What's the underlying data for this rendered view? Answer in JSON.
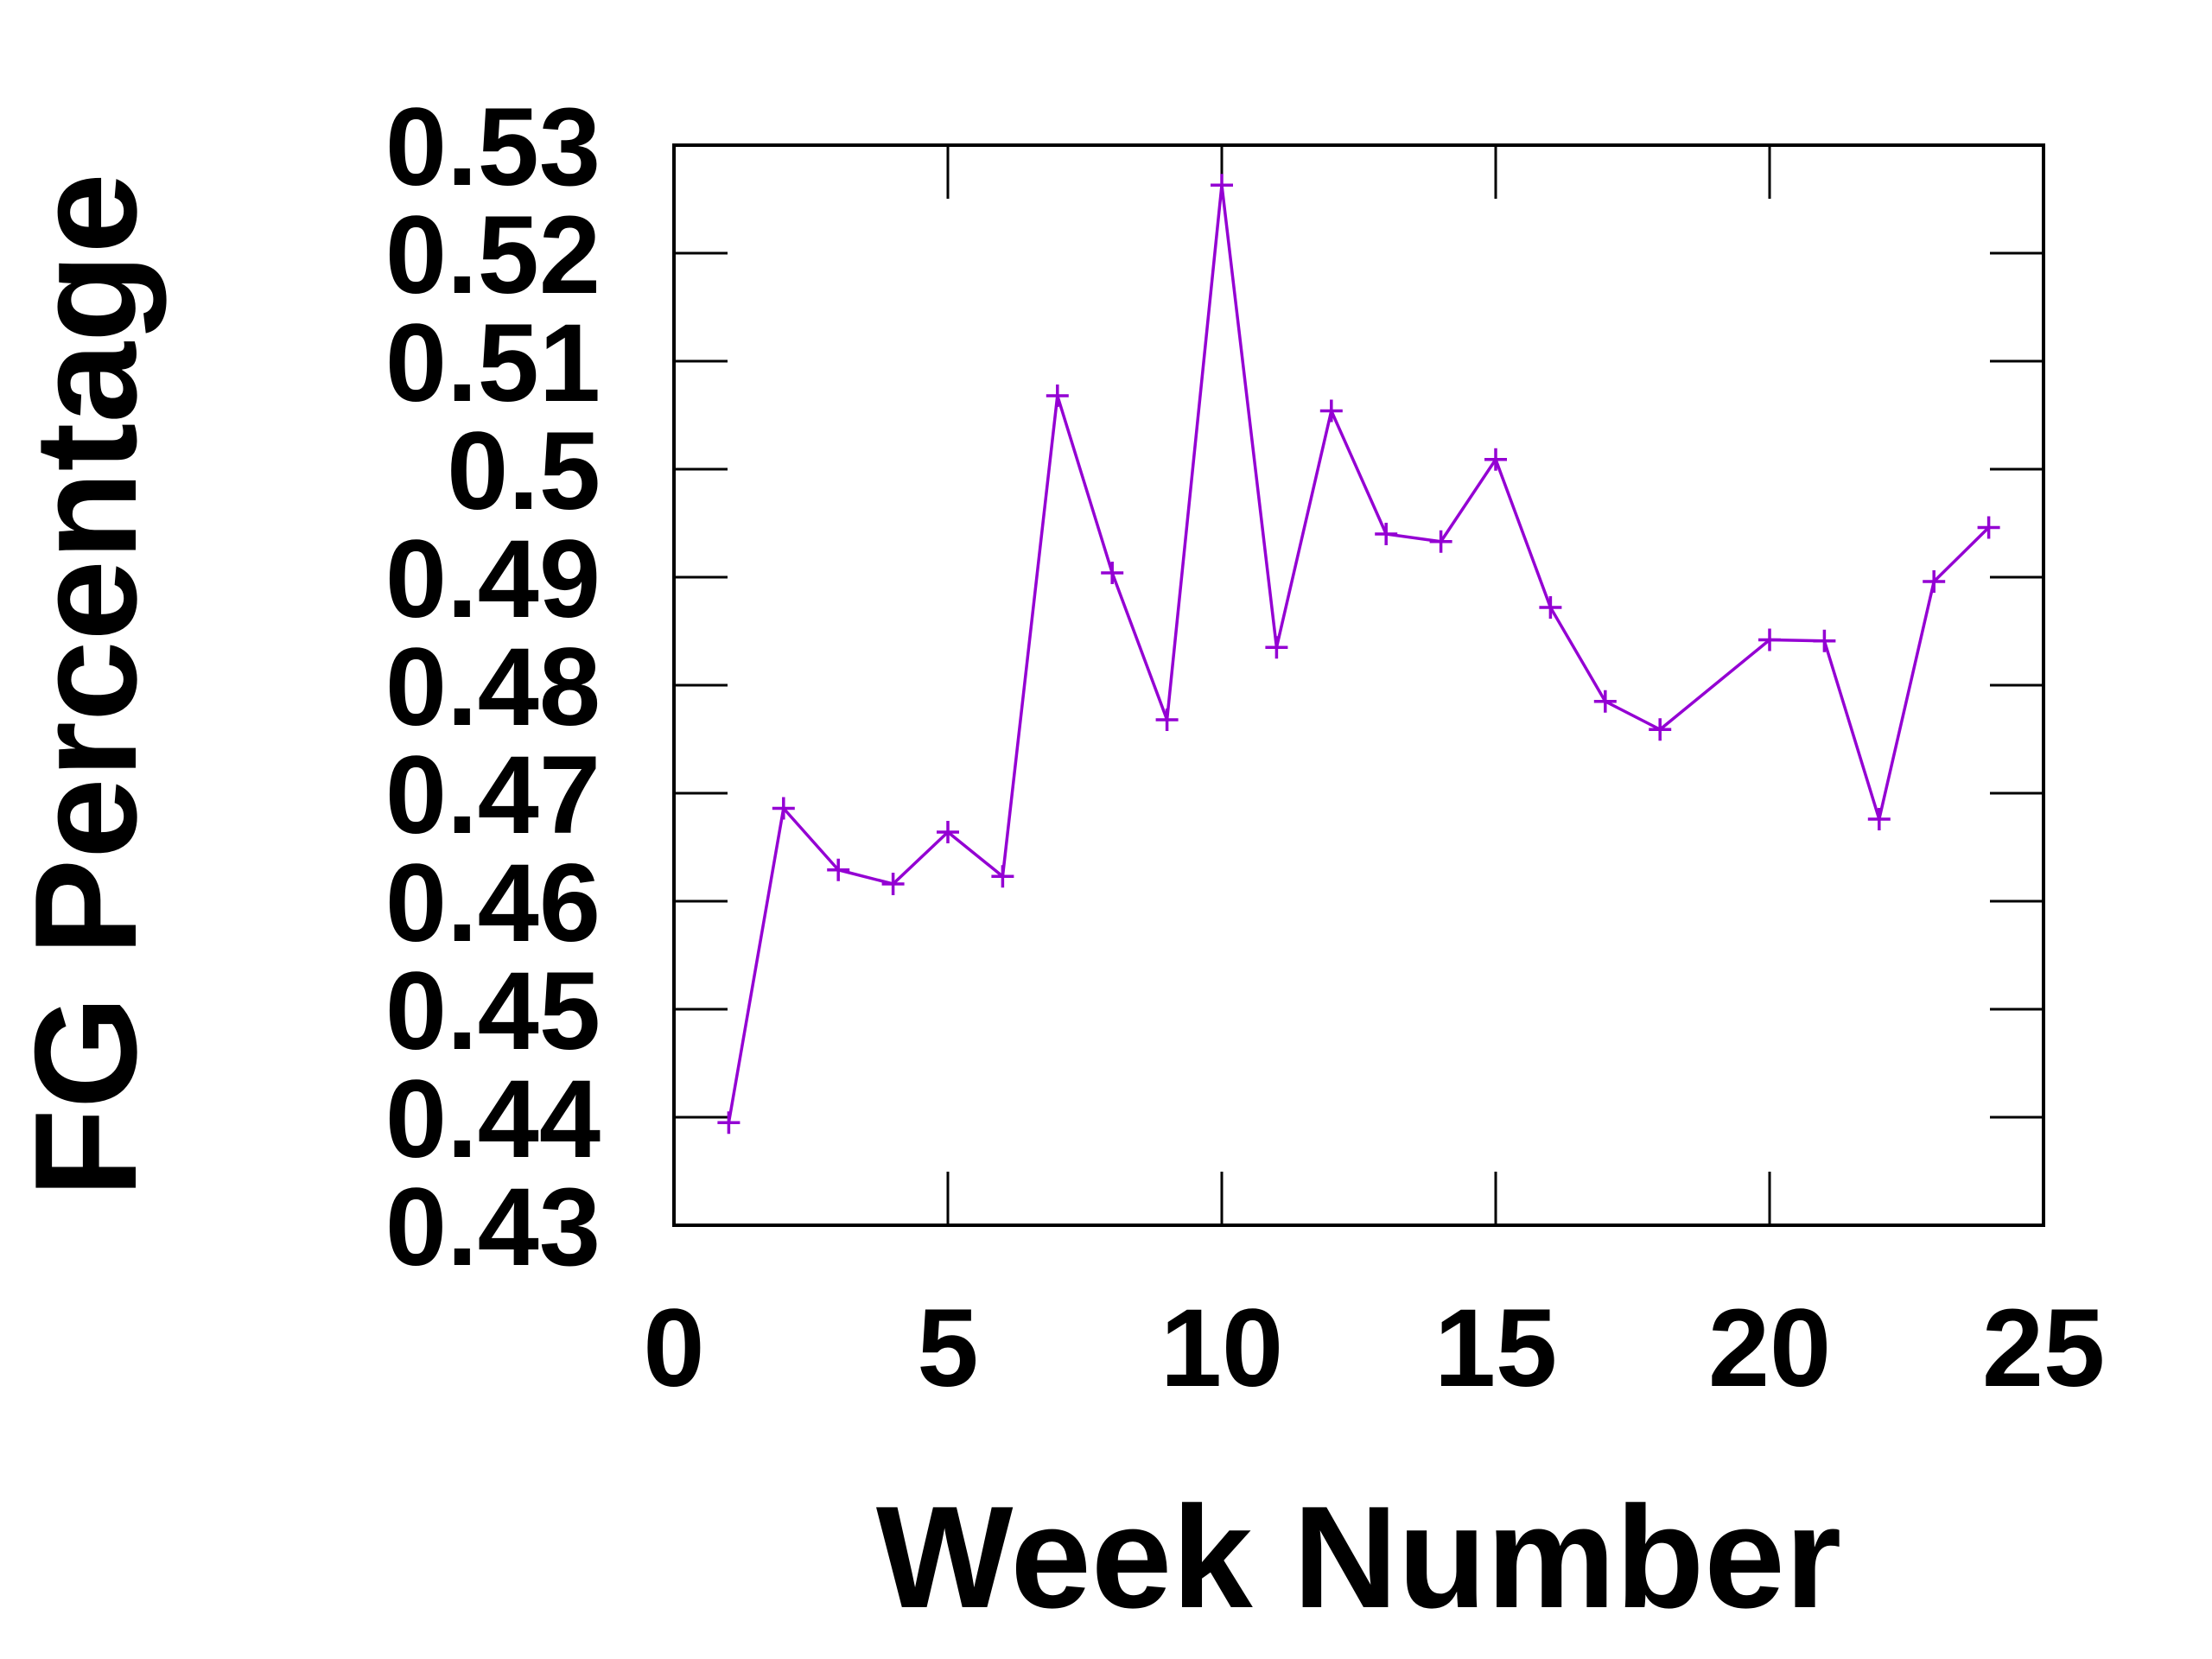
{
  "chart_data": {
    "type": "line",
    "title": "",
    "xlabel": "Week Number",
    "ylabel": "FG Percentage",
    "xlim": [
      0,
      25
    ],
    "ylim": [
      0.43,
      0.53
    ],
    "xticks": [
      0,
      5,
      10,
      15,
      20,
      25
    ],
    "yticks": [
      0.43,
      0.44,
      0.45,
      0.46,
      0.47,
      0.48,
      0.49,
      0.5,
      0.51,
      0.52,
      0.53
    ],
    "xtick_labels": [
      "0",
      "5",
      "10",
      "15",
      "20",
      "25"
    ],
    "ytick_labels": [
      "0.43",
      "0.44",
      "0.45",
      "0.46",
      "0.47",
      "0.48",
      "0.49",
      "0.5",
      "0.51",
      "0.52",
      "0.53"
    ],
    "grid": false,
    "legend": false,
    "marker": "plus",
    "series": [
      {
        "color": "#9400D3",
        "x": [
          1,
          2,
          3,
          4,
          5,
          6,
          7,
          8,
          9,
          10,
          11,
          12,
          13,
          14,
          15,
          16,
          17,
          18,
          20,
          21,
          22,
          23,
          24
        ],
        "y": [
          0.4395,
          0.4686,
          0.4629,
          0.4616,
          0.4664,
          0.4623,
          0.5068,
          0.4904,
          0.4768,
          0.5263,
          0.4835,
          0.5054,
          0.494,
          0.4933,
          0.5009,
          0.4872,
          0.4785,
          0.4759,
          0.4842,
          0.4841,
          0.4676,
          0.4896,
          0.4946
        ]
      }
    ]
  }
}
